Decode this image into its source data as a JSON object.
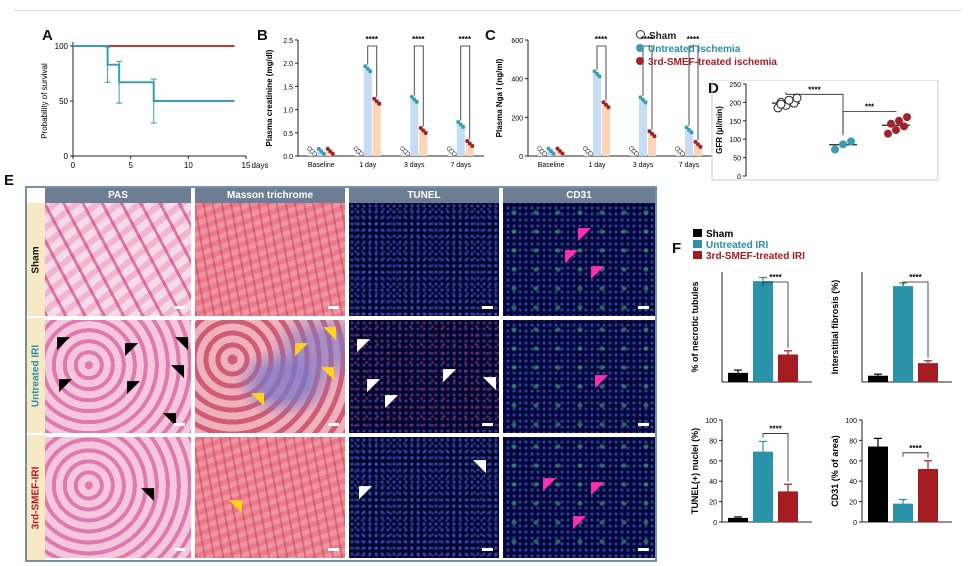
{
  "panels": {
    "A": "A",
    "B": "B",
    "C": "C",
    "D": "D",
    "E": "E",
    "F": "F"
  },
  "legend": {
    "groups": [
      "Sham",
      "Untreated ischemia",
      "3rd-SMEF-treated ischemia"
    ],
    "colors": {
      "sham": "#ffffff",
      "untreated": "#3a9db5",
      "treated": "#a32128"
    }
  },
  "chart_data": [
    {
      "id": "A",
      "type": "line",
      "xlabel": "days",
      "ylabel": "Probability of survival",
      "xlim": [
        0,
        15
      ],
      "ylim": [
        0,
        100
      ],
      "xticks": [
        "0",
        "5",
        "10",
        "15"
      ],
      "yticks": [
        "0",
        "50",
        "100"
      ],
      "series": [
        {
          "name": "3rd-SMEF-treated ischemia",
          "color": "#c0392b",
          "steps": [
            [
              0,
              100
            ],
            [
              14,
              100
            ]
          ]
        },
        {
          "name": "Untreated ischemia",
          "color": "#3a9db5",
          "steps": [
            [
              0,
              100
            ],
            [
              3,
              100
            ],
            [
              3,
              83
            ],
            [
              4,
              83
            ],
            [
              4,
              67
            ],
            [
              7,
              67
            ],
            [
              7,
              50
            ],
            [
              14,
              50
            ]
          ]
        }
      ],
      "error_bars": [
        [
          3,
          83,
          16
        ],
        [
          4,
          67,
          19
        ],
        [
          7,
          50,
          20
        ]
      ]
    },
    {
      "id": "B",
      "type": "bar",
      "ylabel": "Plasma creatinine (mg/dl)",
      "ylim": [
        0,
        2.5
      ],
      "yticks": [
        "0.0",
        "0.5",
        "1.0",
        "1.5",
        "2.0",
        "2.5"
      ],
      "categories": [
        "Baseline",
        "1 day",
        "3 days",
        "7 days"
      ],
      "series": [
        {
          "name": "Sham",
          "values": [
            0.1,
            0.1,
            0.1,
            0.1
          ]
        },
        {
          "name": "Untreated ischemia",
          "values": [
            0.1,
            1.88,
            1.22,
            0.68
          ]
        },
        {
          "name": "3rd-SMEF-treated ischemia",
          "values": [
            0.1,
            1.18,
            0.55,
            0.27
          ]
        }
      ],
      "significance": [
        "****",
        "****",
        "****"
      ]
    },
    {
      "id": "C",
      "type": "bar",
      "ylabel": "Plasma Nga l (ng/ml)",
      "ylim": [
        0,
        600
      ],
      "yticks": [
        "0",
        "200",
        "400",
        "600"
      ],
      "categories": [
        "Baseline",
        "1 day",
        "3 days",
        "7 days"
      ],
      "series": [
        {
          "name": "Sham",
          "values": [
            25,
            25,
            25,
            25
          ]
        },
        {
          "name": "Untreated ischemia",
          "values": [
            25,
            425,
            290,
            135
          ]
        },
        {
          "name": "3rd-SMEF-treated ischemia",
          "values": [
            25,
            265,
            115,
            60
          ]
        }
      ],
      "significance": [
        "****",
        "****",
        "****"
      ]
    },
    {
      "id": "D",
      "type": "scatter",
      "ylabel": "GFR (µl/min)",
      "ylim": [
        0,
        250
      ],
      "yticks": [
        "0",
        "50",
        "100",
        "150",
        "200",
        "250"
      ],
      "groups": [
        {
          "name": "Sham",
          "mean": 198,
          "points": [
            185,
            192,
            198,
            200,
            206,
            212,
            195
          ]
        },
        {
          "name": "Untreated ischemia",
          "mean": 85,
          "points": [
            72,
            86,
            94
          ]
        },
        {
          "name": "3rd-SMEF-treated ischemia",
          "mean": 138,
          "points": [
            115,
            125,
            135,
            142,
            150,
            160
          ]
        }
      ],
      "significance": [
        "****",
        "***"
      ]
    },
    {
      "id": "F1",
      "type": "bar",
      "ylabel": "% of necrotic tubules",
      "ylim": [
        0,
        60
      ],
      "categories": [
        "Sham",
        "Untreated IRI",
        "3rd-SMEF-treated IRI"
      ],
      "values": [
        5,
        55,
        15
      ],
      "errors": [
        1.5,
        2,
        2
      ],
      "significance": "****"
    },
    {
      "id": "F2",
      "type": "bar",
      "ylabel": "Interstitial fibrosis (%)",
      "ylim": [
        0,
        70
      ],
      "categories": [
        "Sham",
        "Untreated IRI",
        "3rd-SMEF-treated IRI"
      ],
      "values": [
        4,
        61,
        12
      ],
      "errors": [
        1,
        2,
        1.5
      ],
      "significance": "****"
    },
    {
      "id": "F3",
      "type": "bar",
      "ylabel": "TUNEL(+) nuclei (%)",
      "ylim": [
        0,
        100
      ],
      "yticks": [
        "0",
        "20",
        "40",
        "60",
        "80",
        "100"
      ],
      "categories": [
        "Sham",
        "Untreated IRI",
        "3rd-SMEF-treated IRI"
      ],
      "values": [
        4,
        69,
        30
      ],
      "errors": [
        1,
        10,
        7
      ],
      "significance": "****"
    },
    {
      "id": "F4",
      "type": "bar",
      "ylabel": "CD31 (% of area)",
      "ylim": [
        0,
        100
      ],
      "yticks": [
        "0",
        "20",
        "40",
        "60",
        "80",
        "100"
      ],
      "categories": [
        "Sham",
        "Untreated IRI",
        "3rd-SMEF-treated IRI"
      ],
      "values": [
        74,
        18,
        52
      ],
      "errors": [
        8,
        4,
        8
      ],
      "significance": "****"
    }
  ],
  "panelE": {
    "columns": [
      "PAS",
      "Masson trichrome",
      "TUNEL",
      "CD31"
    ],
    "rows": [
      "Sham",
      "Untreated IRI",
      "3rd-SMEF-IRI"
    ]
  },
  "legendF": {
    "items": [
      "Sham",
      "Untreated IRI",
      "3rd-SMEF-treated IRI"
    ]
  }
}
